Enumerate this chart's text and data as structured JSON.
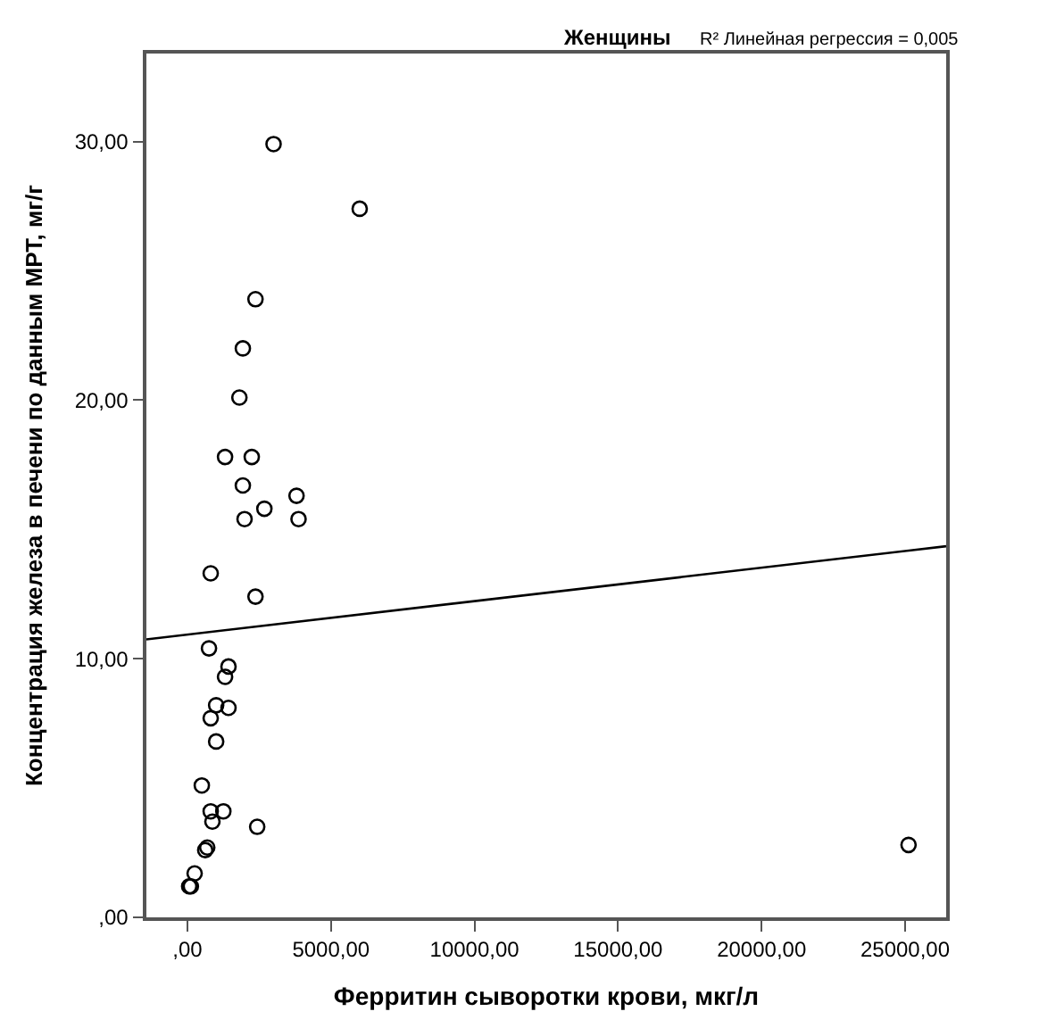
{
  "chart_data": {
    "type": "scatter",
    "title": "Женщины",
    "annotations": [
      "R² Линейная регрессия = 0,005"
    ],
    "xlabel": "Ферритин сыворотки крови, мкг/л",
    "ylabel": "Концентрация железа в печени по данным МРТ, мг/г",
    "xlim": [
      -1430,
      26430
    ],
    "ylim": [
      0,
      33.4
    ],
    "xticks": [
      {
        "value": 0,
        "label": ",00"
      },
      {
        "value": 5000,
        "label": "5000,00"
      },
      {
        "value": 10000,
        "label": "10000,00"
      },
      {
        "value": 15000,
        "label": "15000,00"
      },
      {
        "value": 20000,
        "label": "20000,00"
      },
      {
        "value": 25000,
        "label": "25000,00"
      }
    ],
    "yticks": [
      {
        "value": 0,
        "label": ",00"
      },
      {
        "value": 10,
        "label": "10,00"
      },
      {
        "value": 20,
        "label": "20,00"
      },
      {
        "value": 30,
        "label": "30,00"
      }
    ],
    "series": [
      {
        "marker": "circle",
        "color": "#000000",
        "x": [
          3000,
          6000,
          2370,
          1930,
          1810,
          1310,
          2240,
          1930,
          3800,
          1990,
          2680,
          3870,
          810,
          2370,
          750,
          1430,
          1310,
          1000,
          1430,
          810,
          1000,
          500,
          810,
          1250,
          870,
          2430,
          690,
          620,
          250,
          60,
          120,
          25120
        ],
        "values": [
          29.9,
          27.4,
          23.9,
          22.0,
          20.1,
          17.8,
          17.8,
          16.7,
          16.3,
          15.4,
          15.8,
          15.4,
          13.3,
          12.4,
          10.4,
          9.7,
          9.3,
          8.2,
          8.1,
          7.7,
          6.8,
          5.1,
          4.1,
          4.1,
          3.7,
          3.5,
          2.7,
          2.6,
          1.7,
          1.2,
          1.2,
          2.8
        ]
      },
      {
        "type": "line",
        "marker": "none",
        "color": "#000000",
        "x": [
          -1430,
          26430
        ],
        "values": [
          10.75,
          14.35
        ]
      }
    ]
  }
}
